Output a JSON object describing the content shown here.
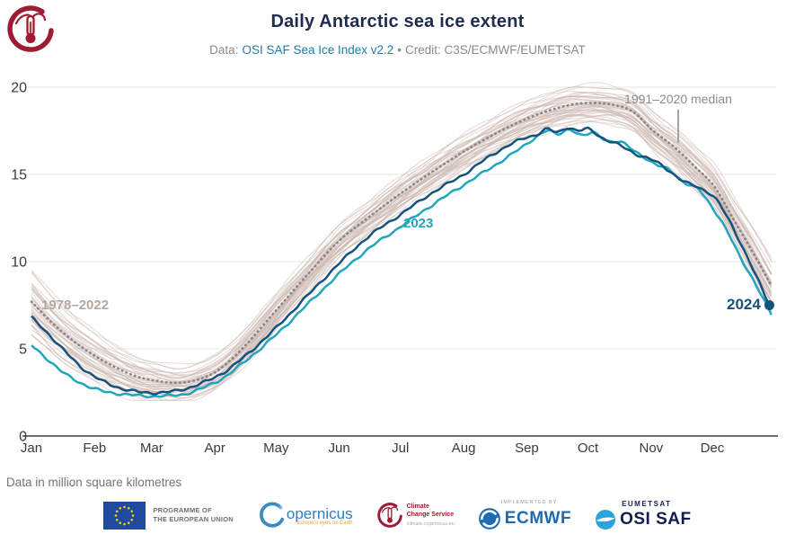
{
  "header": {
    "title": "Daily Antarctic sea ice extent",
    "data_label": "Data:",
    "data_link": "OSI SAF Sea Ice Index v2.2",
    "separator": "•",
    "credit": "Credit: C3S/ECMWF/EUMETSAT"
  },
  "annotations": {
    "background_years": "1978–2022",
    "median_label": "1991–2020 median",
    "year_2023": "2023",
    "year_2024": "2024"
  },
  "footnote": "Data in million square kilometres",
  "footer": {
    "eu": {
      "line1": "PROGRAMME OF",
      "line2": "THE EUROPEAN UNION"
    },
    "copernicus": {
      "name": "opernicus",
      "tagline": "Europe's eyes on Earth"
    },
    "c3s": {
      "line1": "Climate",
      "line2": "Change Service",
      "url": "climate.copernicus.eu"
    },
    "ecmwf": {
      "label": "IMPLEMENTED BY",
      "name": "ECMWF"
    },
    "osisaf": {
      "org": "EUMETSAT",
      "name": "OSI SAF"
    }
  },
  "chart_data": {
    "type": "line",
    "title": "Daily Antarctic sea ice extent",
    "unit": "million square kilometres",
    "x_unit": "day of year",
    "xlim": [
      0,
      364
    ],
    "ylim": [
      0,
      20
    ],
    "grid": true,
    "y_ticks": [
      0,
      5,
      10,
      15,
      20
    ],
    "x_ticks": [
      "Jan",
      "Feb",
      "Mar",
      "Apr",
      "May",
      "Jun",
      "Jul",
      "Aug",
      "Sep",
      "Oct",
      "Nov",
      "Dec"
    ],
    "month_start_days": [
      0,
      31,
      59,
      90,
      120,
      151,
      181,
      212,
      243,
      273,
      304,
      334
    ],
    "colors": {
      "grid": "#e4e4e4",
      "axis": "#3f3f3f",
      "tick_text": "#3a3a3a",
      "background_years": "rgba(204,182,174,0.5)",
      "median": "#8a8486",
      "y2023": "#21a6bd",
      "y2024": "#15537e"
    },
    "background_years": {
      "label": "1978–2022",
      "count": 45,
      "spread_by_day": [
        [
          0,
          1.5
        ],
        [
          31,
          1.15
        ],
        [
          62,
          0.85
        ],
        [
          92,
          0.8
        ],
        [
          151,
          0.75
        ],
        [
          212,
          0.8
        ],
        [
          275,
          0.85
        ],
        [
          335,
          1.0
        ],
        [
          364,
          1.3
        ]
      ]
    },
    "series": [
      {
        "name": "1991–2020 median",
        "style": "dotted",
        "color_key": "median",
        "points": [
          [
            0,
            7.7
          ],
          [
            10,
            6.5
          ],
          [
            20,
            5.5
          ],
          [
            31,
            4.6
          ],
          [
            42,
            3.9
          ],
          [
            52,
            3.4
          ],
          [
            62,
            3.15
          ],
          [
            72,
            3.05
          ],
          [
            82,
            3.25
          ],
          [
            92,
            3.8
          ],
          [
            105,
            5.2
          ],
          [
            120,
            7.2
          ],
          [
            135,
            9.2
          ],
          [
            151,
            11.2
          ],
          [
            165,
            12.5
          ],
          [
            181,
            13.9
          ],
          [
            196,
            15.1
          ],
          [
            212,
            16.3
          ],
          [
            227,
            17.3
          ],
          [
            243,
            18.2
          ],
          [
            255,
            18.7
          ],
          [
            265,
            19.0
          ],
          [
            275,
            19.1
          ],
          [
            285,
            19.0
          ],
          [
            295,
            18.6
          ],
          [
            305,
            17.5
          ],
          [
            315,
            16.6
          ],
          [
            325,
            15.5
          ],
          [
            335,
            14.3
          ],
          [
            345,
            12.3
          ],
          [
            355,
            10.3
          ],
          [
            364,
            8.4
          ]
        ]
      },
      {
        "name": "2023",
        "style": "solid",
        "color_key": "y2023",
        "points": [
          [
            0,
            5.2
          ],
          [
            8,
            4.4
          ],
          [
            16,
            3.6
          ],
          [
            25,
            3.0
          ],
          [
            34,
            2.6
          ],
          [
            45,
            2.4
          ],
          [
            55,
            2.3
          ],
          [
            65,
            2.3
          ],
          [
            75,
            2.4
          ],
          [
            85,
            2.8
          ],
          [
            95,
            3.4
          ],
          [
            105,
            4.3
          ],
          [
            120,
            5.8
          ],
          [
            135,
            7.5
          ],
          [
            151,
            9.3
          ],
          [
            165,
            10.7
          ],
          [
            181,
            12.0
          ],
          [
            196,
            13.2
          ],
          [
            212,
            14.4
          ],
          [
            227,
            15.5
          ],
          [
            240,
            16.5
          ],
          [
            247,
            17.1
          ],
          [
            253,
            17.5
          ],
          [
            258,
            17.3
          ],
          [
            264,
            17.6
          ],
          [
            270,
            17.2
          ],
          [
            276,
            17.4
          ],
          [
            283,
            16.9
          ],
          [
            290,
            16.8
          ],
          [
            298,
            16.2
          ],
          [
            305,
            15.6
          ],
          [
            313,
            15.3
          ],
          [
            320,
            14.5
          ],
          [
            328,
            14.1
          ],
          [
            335,
            12.9
          ],
          [
            342,
            11.6
          ],
          [
            349,
            10.0
          ],
          [
            356,
            8.5
          ],
          [
            364,
            6.8
          ]
        ]
      },
      {
        "name": "2024",
        "style": "solid",
        "color_key": "y2024",
        "end_dot": true,
        "points": [
          [
            0,
            6.8
          ],
          [
            8,
            5.9
          ],
          [
            16,
            4.9
          ],
          [
            25,
            3.9
          ],
          [
            34,
            3.2
          ],
          [
            45,
            2.7
          ],
          [
            55,
            2.5
          ],
          [
            65,
            2.5
          ],
          [
            75,
            2.7
          ],
          [
            85,
            3.1
          ],
          [
            95,
            3.7
          ],
          [
            105,
            4.6
          ],
          [
            120,
            6.2
          ],
          [
            135,
            8.0
          ],
          [
            151,
            9.9
          ],
          [
            165,
            11.4
          ],
          [
            181,
            12.7
          ],
          [
            196,
            13.9
          ],
          [
            212,
            15.0
          ],
          [
            227,
            16.2
          ],
          [
            240,
            17.0
          ],
          [
            248,
            17.3
          ],
          [
            253,
            17.6
          ],
          [
            258,
            17.4
          ],
          [
            263,
            17.7
          ],
          [
            268,
            17.5
          ],
          [
            273,
            17.6
          ],
          [
            280,
            17.1
          ],
          [
            288,
            16.7
          ],
          [
            296,
            16.2
          ],
          [
            305,
            15.8
          ],
          [
            313,
            15.2
          ],
          [
            320,
            14.6
          ],
          [
            328,
            14.2
          ],
          [
            335,
            13.7
          ],
          [
            342,
            12.4
          ],
          [
            349,
            10.8
          ],
          [
            355,
            9.3
          ],
          [
            362,
            7.5
          ]
        ]
      }
    ]
  }
}
